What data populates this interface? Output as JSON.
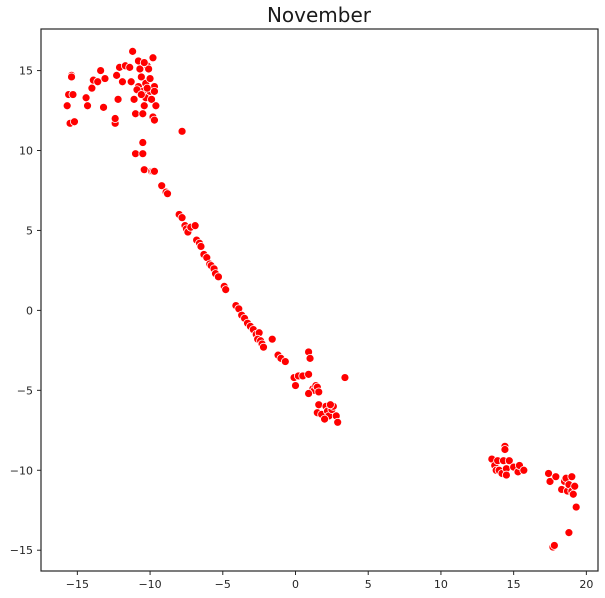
{
  "chart_data": {
    "type": "scatter",
    "title": "November",
    "xlabel": "",
    "ylabel": "",
    "xlim": [
      -17.5,
      20.8
    ],
    "ylim": [
      -16.3,
      17.6
    ],
    "x_ticks": [
      -15,
      -10,
      -5,
      0,
      5,
      10,
      15,
      20
    ],
    "y_ticks": [
      15,
      10,
      5,
      0,
      -5,
      -10,
      -15
    ],
    "grid": false,
    "point_color": "#ff0000",
    "point_edge_color": "#ffffff",
    "series": [
      {
        "points": [
          [
            -15.4,
            14.7
          ],
          [
            -15.4,
            14.6
          ],
          [
            -15.6,
            13.5
          ],
          [
            -15.3,
            13.5
          ],
          [
            -15.7,
            12.8
          ],
          [
            -15.5,
            11.7
          ],
          [
            -15.2,
            11.8
          ],
          [
            -14.4,
            13.3
          ],
          [
            -14.3,
            12.8
          ],
          [
            -14.0,
            13.9
          ],
          [
            -13.9,
            14.4
          ],
          [
            -13.6,
            14.3
          ],
          [
            -13.4,
            15.0
          ],
          [
            -13.2,
            12.7
          ],
          [
            -13.1,
            14.5
          ],
          [
            -12.4,
            11.7
          ],
          [
            -12.4,
            12.0
          ],
          [
            -12.3,
            14.7
          ],
          [
            -12.1,
            15.2
          ],
          [
            -12.2,
            13.2
          ],
          [
            -11.9,
            14.3
          ],
          [
            -11.7,
            15.3
          ],
          [
            -11.4,
            15.2
          ],
          [
            -11.3,
            14.3
          ],
          [
            -11.2,
            16.2
          ],
          [
            -11.1,
            13.2
          ],
          [
            -11.0,
            12.3
          ],
          [
            -10.8,
            14.0
          ],
          [
            -10.8,
            15.6
          ],
          [
            -10.7,
            15.1
          ],
          [
            -10.6,
            14.6
          ],
          [
            -10.5,
            13.7
          ],
          [
            -10.5,
            12.3
          ],
          [
            -10.4,
            12.8
          ],
          [
            -10.3,
            13.3
          ],
          [
            -10.3,
            14.2
          ],
          [
            -10.2,
            15.3
          ],
          [
            -10.1,
            15.1
          ],
          [
            -10.0,
            14.5
          ],
          [
            -10.0,
            13.7
          ],
          [
            -9.9,
            13.2
          ],
          [
            -9.8,
            12.1
          ],
          [
            -9.7,
            11.9
          ],
          [
            -9.7,
            14.0
          ],
          [
            -9.7,
            13.7
          ],
          [
            -9.6,
            12.8
          ],
          [
            -10.9,
            13.8
          ],
          [
            -10.6,
            13.5
          ],
          [
            -10.2,
            13.9
          ],
          [
            -10.4,
            15.5
          ],
          [
            -9.8,
            15.8
          ],
          [
            -11.0,
            9.8
          ],
          [
            -10.5,
            10.5
          ],
          [
            -10.4,
            8.8
          ],
          [
            -10.5,
            9.8
          ],
          [
            -9.9,
            8.7
          ],
          [
            -9.8,
            8.7
          ],
          [
            -9.7,
            8.7
          ],
          [
            -9.2,
            7.8
          ],
          [
            -8.9,
            7.4
          ],
          [
            -8.8,
            7.3
          ],
          [
            -8.0,
            6.0
          ],
          [
            -7.8,
            5.8
          ],
          [
            -7.6,
            5.3
          ],
          [
            -7.5,
            5.1
          ],
          [
            -7.4,
            4.9
          ],
          [
            -7.2,
            5.2
          ],
          [
            -6.9,
            5.3
          ],
          [
            -6.8,
            4.4
          ],
          [
            -6.6,
            4.2
          ],
          [
            -6.5,
            4.0
          ],
          [
            -6.3,
            3.5
          ],
          [
            -6.1,
            3.3
          ],
          [
            -5.9,
            2.9
          ],
          [
            -5.8,
            2.8
          ],
          [
            -5.6,
            2.6
          ],
          [
            -5.5,
            2.3
          ],
          [
            -5.3,
            2.1
          ],
          [
            -4.9,
            1.5
          ],
          [
            -4.8,
            1.3
          ],
          [
            -4.1,
            0.3
          ],
          [
            -3.9,
            0.1
          ],
          [
            -3.7,
            -0.3
          ],
          [
            -3.5,
            -0.5
          ],
          [
            -3.3,
            -0.8
          ],
          [
            -3.1,
            -1.0
          ],
          [
            -2.9,
            -1.2
          ],
          [
            -2.7,
            -1.5
          ],
          [
            -2.5,
            -1.4
          ],
          [
            -2.6,
            -1.8
          ],
          [
            -2.4,
            -1.9
          ],
          [
            -2.3,
            -2.1
          ],
          [
            -2.2,
            -2.3
          ],
          [
            -1.6,
            -1.8
          ],
          [
            -1.2,
            -2.8
          ],
          [
            -1.0,
            -3.0
          ],
          [
            -0.7,
            -3.2
          ],
          [
            -7.8,
            11.2
          ],
          [
            -0.1,
            -4.2
          ],
          [
            0.2,
            -4.1
          ],
          [
            0.5,
            -4.1
          ],
          [
            0.9,
            -4.0
          ],
          [
            0.0,
            -4.7
          ],
          [
            0.9,
            -2.6
          ],
          [
            1.0,
            -3.0
          ],
          [
            1.2,
            -4.9
          ],
          [
            1.3,
            -5.0
          ],
          [
            1.4,
            -4.7
          ],
          [
            1.5,
            -4.8
          ],
          [
            1.6,
            -5.1
          ],
          [
            0.9,
            -5.2
          ],
          [
            1.6,
            -5.9
          ],
          [
            1.5,
            -6.4
          ],
          [
            1.8,
            -6.5
          ],
          [
            2.1,
            -6.0
          ],
          [
            2.2,
            -6.3
          ],
          [
            2.3,
            -6.6
          ],
          [
            2.5,
            -6.2
          ],
          [
            2.6,
            -6.0
          ],
          [
            2.8,
            -6.6
          ],
          [
            2.9,
            -7.0
          ],
          [
            3.4,
            -4.2
          ],
          [
            2.4,
            -5.9
          ],
          [
            2.0,
            -6.8
          ],
          [
            13.5,
            -9.3
          ],
          [
            13.7,
            -9.7
          ],
          [
            13.9,
            -9.4
          ],
          [
            13.8,
            -10.0
          ],
          [
            14.0,
            -10.0
          ],
          [
            14.2,
            -10.2
          ],
          [
            14.3,
            -9.4
          ],
          [
            14.4,
            -8.5
          ],
          [
            14.5,
            -9.9
          ],
          [
            14.5,
            -10.3
          ],
          [
            14.4,
            -8.7
          ],
          [
            14.7,
            -9.4
          ],
          [
            15.0,
            -9.8
          ],
          [
            15.3,
            -10.1
          ],
          [
            15.4,
            -9.7
          ],
          [
            15.7,
            -10.0
          ],
          [
            17.4,
            -10.2
          ],
          [
            17.5,
            -10.7
          ],
          [
            17.9,
            -10.4
          ],
          [
            18.3,
            -11.2
          ],
          [
            18.5,
            -10.7
          ],
          [
            18.6,
            -10.5
          ],
          [
            18.7,
            -11.3
          ],
          [
            18.8,
            -10.9
          ],
          [
            19.0,
            -10.4
          ],
          [
            19.0,
            -11.3
          ],
          [
            19.1,
            -11.5
          ],
          [
            19.2,
            -11.0
          ],
          [
            19.3,
            -12.3
          ],
          [
            17.7,
            -14.8
          ],
          [
            17.8,
            -14.7
          ],
          [
            18.8,
            -13.9
          ]
        ]
      }
    ]
  }
}
